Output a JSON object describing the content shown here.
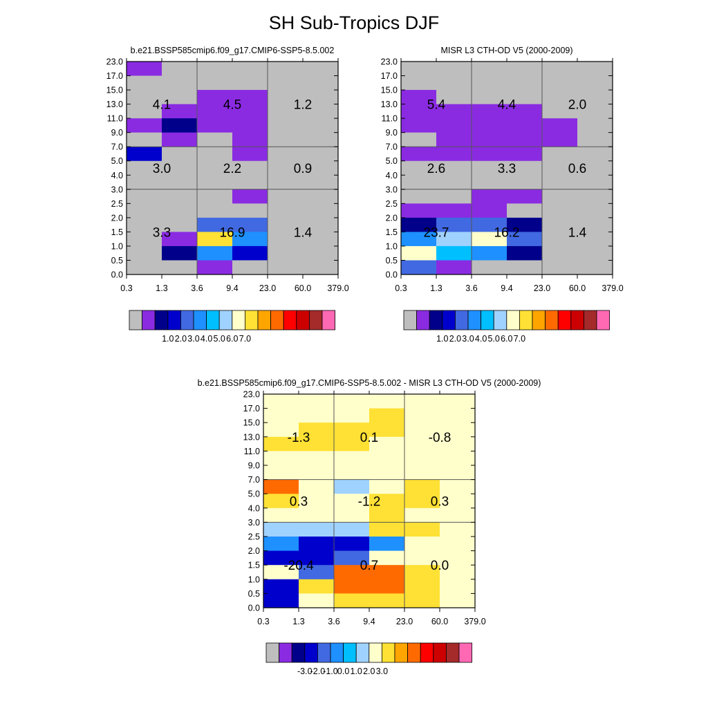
{
  "title": "SH Sub-Tropics DJF",
  "chart_data": [
    {
      "type": "heatmap",
      "title": "b.e21.BSSP585cmip6.f09_g17.CMIP6-SSP5-8.5.002",
      "x_ticks": [
        "0.3",
        "1.3",
        "3.6",
        "9.4",
        "23.0",
        "60.0",
        "379.0"
      ],
      "y_ticks": [
        "0.0",
        "0.5",
        "1.0",
        "1.5",
        "2.0",
        "2.5",
        "3.0",
        "4.0",
        "5.0",
        "7.0",
        "9.0",
        "11.0",
        "13.0",
        "15.0",
        "17.0",
        "23.0"
      ],
      "color_index": [
        [
          1,
          0,
          0,
          0,
          0,
          0
        ],
        [
          0,
          0,
          0,
          0,
          0,
          0
        ],
        [
          0,
          0,
          1,
          1,
          0,
          0
        ],
        [
          0,
          1,
          1,
          1,
          0,
          0
        ],
        [
          1,
          2,
          1,
          1,
          0,
          0
        ],
        [
          0,
          1,
          0,
          1,
          0,
          0
        ],
        [
          3,
          0,
          0,
          1,
          0,
          0
        ],
        [
          0,
          0,
          0,
          0,
          0,
          0
        ],
        [
          0,
          0,
          0,
          0,
          0,
          0
        ],
        [
          0,
          0,
          0,
          1,
          0,
          0
        ],
        [
          0,
          0,
          0,
          0,
          0,
          0
        ],
        [
          0,
          0,
          4,
          4,
          0,
          0
        ],
        [
          0,
          1,
          9,
          5,
          0,
          0
        ],
        [
          0,
          2,
          5,
          3,
          0,
          0
        ],
        [
          0,
          0,
          1,
          0,
          0,
          0
        ]
      ],
      "region_values": [
        [
          "4.1",
          "4.5",
          "1.2"
        ],
        [
          "3.0",
          "2.2",
          "0.9"
        ],
        [
          "3.3",
          "16.9",
          "1.4"
        ]
      ],
      "colorbar_labels": [
        "1.0",
        "2.0",
        "3.0",
        "4.0",
        "5.0",
        "6.0",
        "7.0"
      ]
    },
    {
      "type": "heatmap",
      "title": "MISR L3 CTH-OD V5 (2000-2009)",
      "x_ticks": [
        "0.3",
        "1.3",
        "3.6",
        "9.4",
        "23.0",
        "60.0",
        "379.0"
      ],
      "y_ticks": [
        "0.0",
        "0.5",
        "1.0",
        "1.5",
        "2.0",
        "2.5",
        "3.0",
        "4.0",
        "5.0",
        "7.0",
        "9.0",
        "11.0",
        "13.0",
        "15.0",
        "17.0",
        "23.0"
      ],
      "color_index": [
        [
          0,
          0,
          0,
          0,
          0,
          0
        ],
        [
          0,
          0,
          0,
          0,
          0,
          0
        ],
        [
          1,
          0,
          0,
          0,
          0,
          0
        ],
        [
          1,
          1,
          1,
          1,
          0,
          0
        ],
        [
          1,
          1,
          1,
          1,
          1,
          0
        ],
        [
          0,
          1,
          1,
          1,
          1,
          0
        ],
        [
          1,
          1,
          1,
          1,
          0,
          0
        ],
        [
          0,
          0,
          0,
          0,
          0,
          0
        ],
        [
          0,
          0,
          0,
          0,
          0,
          0
        ],
        [
          0,
          0,
          1,
          1,
          0,
          0
        ],
        [
          1,
          1,
          1,
          0,
          0,
          0
        ],
        [
          2,
          4,
          4,
          2,
          0,
          0
        ],
        [
          5,
          7,
          8,
          4,
          0,
          0
        ],
        [
          8,
          6,
          5,
          2,
          0,
          0
        ],
        [
          4,
          1,
          0,
          0,
          0,
          0
        ]
      ],
      "region_values": [
        [
          "5.4",
          "4.4",
          "2.0"
        ],
        [
          "2.6",
          "3.3",
          "0.6"
        ],
        [
          "23.7",
          "16.2",
          "1.4"
        ]
      ],
      "colorbar_labels": [
        "1.0",
        "2.0",
        "3.0",
        "4.0",
        "5.0",
        "6.0",
        "7.0"
      ]
    },
    {
      "type": "heatmap",
      "title": "b.e21.BSSP585cmip6.f09_g17.CMIP6-SSP5-8.5.002 - MISR L3 CTH-OD V5 (2000-2009)",
      "x_ticks": [
        "0.3",
        "1.3",
        "3.6",
        "9.4",
        "23.0",
        "60.0",
        "379.0"
      ],
      "y_ticks": [
        "0.0",
        "0.5",
        "1.0",
        "1.5",
        "2.0",
        "2.5",
        "3.0",
        "4.0",
        "5.0",
        "7.0",
        "9.0",
        "11.0",
        "13.0",
        "15.0",
        "17.0",
        "23.0"
      ],
      "color_index": [
        [
          8,
          8,
          8,
          8,
          8,
          8
        ],
        [
          8,
          8,
          8,
          9,
          8,
          8
        ],
        [
          8,
          9,
          9,
          9,
          8,
          8
        ],
        [
          9,
          9,
          9,
          8,
          8,
          8
        ],
        [
          8,
          8,
          8,
          8,
          8,
          8
        ],
        [
          8,
          8,
          8,
          8,
          8,
          8
        ],
        [
          11,
          8,
          7,
          8,
          9,
          8
        ],
        [
          9,
          8,
          8,
          9,
          9,
          8
        ],
        [
          8,
          8,
          8,
          9,
          8,
          8
        ],
        [
          7,
          7,
          7,
          9,
          9,
          8
        ],
        [
          5,
          3,
          3,
          5,
          8,
          8
        ],
        [
          3,
          3,
          4,
          8,
          8,
          8
        ],
        [
          8,
          4,
          11,
          11,
          9,
          8
        ],
        [
          3,
          9,
          11,
          11,
          9,
          8
        ],
        [
          3,
          8,
          9,
          9,
          9,
          8
        ]
      ],
      "region_values": [
        [
          "-1.3",
          "0.1",
          "-0.8"
        ],
        [
          "0.3",
          "-1.2",
          "0.3"
        ],
        [
          "-20.4",
          "0.7",
          "0.0"
        ]
      ],
      "colorbar_labels": [
        "-3.0",
        "-2.0",
        "-1.0",
        "0.0",
        "1.0",
        "2.0",
        "3.0"
      ]
    }
  ],
  "palette": [
    "#bebebe",
    "#8a2be2",
    "#00008b",
    "#0000cd",
    "#4169e1",
    "#1e90ff",
    "#00bfff",
    "#a0d2ff",
    "#ffffcc",
    "#ffe135",
    "#ffa500",
    "#ff6a00",
    "#ff0000",
    "#cd0000",
    "#a52a2a",
    "#ff69b4"
  ],
  "colors": {
    "missing_gray": "#bebebe",
    "tick_line": "#000000",
    "region_line": "#555555"
  }
}
